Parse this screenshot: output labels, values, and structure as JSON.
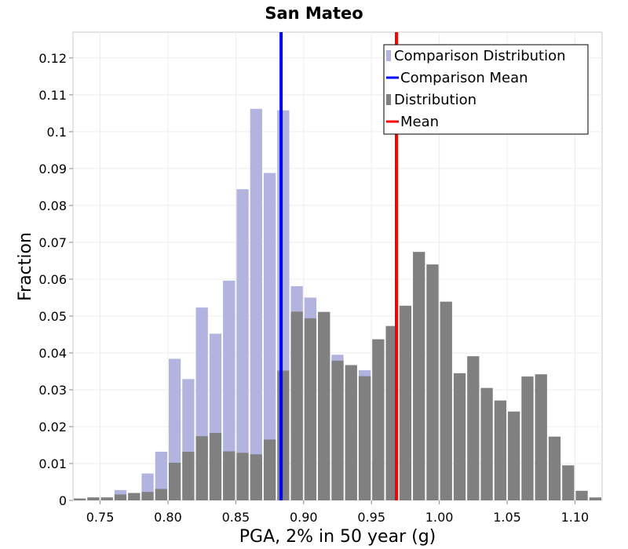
{
  "chart_data": {
    "type": "bar",
    "title": "San Mateo",
    "xlabel": "PGA, 2% in 50 year (g)",
    "ylabel": "Fraction",
    "xlim": [
      0.73,
      1.12
    ],
    "ylim": [
      0,
      0.127
    ],
    "x_ticks": [
      0.75,
      0.8,
      0.85,
      0.9,
      0.95,
      1.0,
      1.05,
      1.1
    ],
    "x_tick_labels": [
      "0.75",
      "0.80",
      "0.85",
      "0.90",
      "0.95",
      "1.00",
      "1.05",
      "1.10"
    ],
    "y_ticks": [
      0,
      0.01,
      0.02,
      0.03,
      0.04,
      0.05,
      0.06,
      0.07,
      0.08,
      0.09,
      0.1,
      0.11,
      0.12
    ],
    "y_tick_labels": [
      "0",
      "0.01",
      "0.02",
      "0.03",
      "0.04",
      "0.05",
      "0.06",
      "0.07",
      "0.08",
      "0.09",
      "0.1",
      "0.11",
      "0.12"
    ],
    "grid": true,
    "legend_position": "top-right",
    "bin_width": 0.01,
    "series": [
      {
        "name": "Comparison Distribution",
        "kind": "histogram",
        "color": "#b3b3e0",
        "bins": [
          0.73,
          0.74,
          0.75,
          0.76,
          0.77,
          0.78,
          0.79,
          0.8,
          0.81,
          0.82,
          0.83,
          0.84,
          0.85,
          0.86,
          0.87,
          0.88,
          0.89,
          0.9,
          0.91,
          0.92,
          0.93,
          0.94,
          0.95
        ],
        "values": [
          0.0005,
          0.0008,
          0.0008,
          0.0028,
          0.002,
          0.0073,
          0.0132,
          0.0384,
          0.0329,
          0.0523,
          0.0452,
          0.0596,
          0.0844,
          0.1062,
          0.0888,
          0.1058,
          0.0581,
          0.055,
          0.0511,
          0.0395,
          0.032,
          0.0353,
          0.0105
        ]
      },
      {
        "name": "Distribution",
        "kind": "histogram",
        "color": "#808080",
        "bins": [
          0.73,
          0.74,
          0.75,
          0.76,
          0.77,
          0.78,
          0.79,
          0.8,
          0.81,
          0.82,
          0.83,
          0.84,
          0.85,
          0.86,
          0.87,
          0.88,
          0.89,
          0.9,
          0.91,
          0.92,
          0.93,
          0.94,
          0.95,
          0.96,
          0.97,
          0.98,
          0.99,
          1.0,
          1.01,
          1.02,
          1.03,
          1.04,
          1.05,
          1.06,
          1.07,
          1.08,
          1.09,
          1.1,
          1.11
        ],
        "values": [
          0.0005,
          0.0008,
          0.0008,
          0.0016,
          0.002,
          0.0023,
          0.0031,
          0.0102,
          0.0132,
          0.0174,
          0.0183,
          0.0133,
          0.0129,
          0.0125,
          0.0165,
          0.0352,
          0.0512,
          0.0494,
          0.0511,
          0.0379,
          0.0367,
          0.0337,
          0.0437,
          0.0473,
          0.0528,
          0.0674,
          0.064,
          0.0539,
          0.0345,
          0.0391,
          0.0305,
          0.0271,
          0.0241,
          0.0336,
          0.0342,
          0.0173,
          0.0095,
          0.0026,
          0.0008
        ]
      },
      {
        "name": "Comparison Mean",
        "kind": "vline",
        "color": "#0000ff",
        "x": 0.8834
      },
      {
        "name": "Mean",
        "kind": "vline",
        "color": "#ff0000",
        "x": 0.9684
      }
    ]
  }
}
